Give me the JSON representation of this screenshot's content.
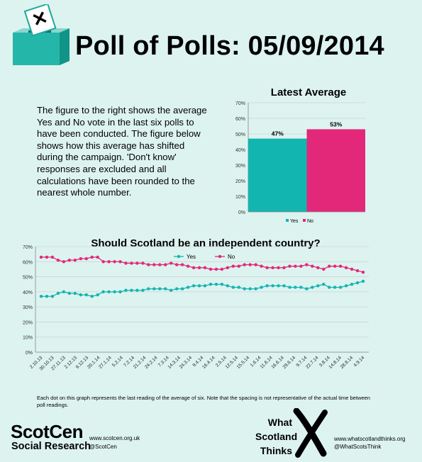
{
  "header": {
    "title": "Poll of Polls: 05/09/2014"
  },
  "intro": {
    "text": "The figure to the right shows the average Yes and No vote in the last six polls to have been conducted. The figure below shows how this average has shifted during the campaign. 'Don't know' responses are excluded  and all calculations have been rounded to the nearest whole number."
  },
  "colors": {
    "yes": "#13b5b0",
    "no": "#e3287a",
    "background": "#ddf3f0"
  },
  "chart_data": [
    {
      "type": "bar",
      "title": "Latest Average",
      "categories": [
        "Yes",
        "No"
      ],
      "values": [
        47,
        53
      ],
      "data_labels": [
        "47%",
        "53%"
      ],
      "ylim": [
        0,
        70
      ],
      "yticks": [
        "0%",
        "10%",
        "20%",
        "30%",
        "40%",
        "50%",
        "60%",
        "70%"
      ],
      "legend": [
        "Yes",
        "No"
      ],
      "legend_position": "bottom"
    },
    {
      "type": "line",
      "title": "Should Scotland be an independent country?",
      "ylim": [
        0,
        70
      ],
      "yticks": [
        "0%",
        "10%",
        "20%",
        "30%",
        "40%",
        "50%",
        "60%",
        "70%"
      ],
      "x_tick_labels": [
        "2.10.13",
        "30.10.13",
        "27.11.13",
        "2.12.13",
        "9.12.13",
        "20.1.14",
        "27.1.14",
        "5.2.14",
        "7.2.14",
        "21.2.14",
        "24.2.14",
        "7.3.14",
        "14.3.14",
        "24.3.14",
        "9.4.14",
        "16.4.14",
        "2.5.14",
        "12.5.14",
        "15.5.14",
        "1.6.14",
        "11.6.14",
        "16.6.14",
        "29.6.14",
        "9.7.14",
        "22.7.14",
        "3.8.14",
        "14.8.14",
        "28.8.14",
        "4.9.14"
      ],
      "legend_position": "top",
      "series": [
        {
          "name": "Yes",
          "values": [
            37,
            37,
            37,
            39,
            40,
            39,
            39,
            38,
            38,
            37,
            38,
            40,
            40,
            40,
            40,
            41,
            41,
            41,
            41,
            42,
            42,
            42,
            42,
            41,
            42,
            42,
            43,
            44,
            44,
            44,
            45,
            45,
            45,
            44,
            43,
            43,
            42,
            42,
            42,
            43,
            44,
            44,
            44,
            44,
            43,
            43,
            43,
            42,
            43,
            44,
            45,
            43,
            43,
            43,
            44,
            45,
            46,
            47
          ]
        },
        {
          "name": "No",
          "values": [
            63,
            63,
            63,
            61,
            60,
            61,
            61,
            62,
            62,
            63,
            63,
            60,
            60,
            60,
            60,
            59,
            59,
            59,
            59,
            58,
            58,
            58,
            58,
            59,
            58,
            58,
            57,
            56,
            56,
            56,
            55,
            55,
            55,
            56,
            57,
            57,
            58,
            58,
            58,
            57,
            56,
            56,
            56,
            56,
            57,
            57,
            57,
            58,
            57,
            56,
            55,
            57,
            57,
            57,
            56,
            55,
            54,
            53
          ]
        }
      ]
    }
  ],
  "footnote": "Each dot on this graph represents the last reading of the average of six. Note that the spacing is not representative of the actual time between poll readings.",
  "footer": {
    "scotcen_name": "ScotCen",
    "scotcen_sub": "Social Research",
    "scotcen_url": "www.scotcen.org.uk",
    "scotcen_handle": "@ScotCen",
    "wst_line1": "What",
    "wst_line2": "Scotland",
    "wst_line3": "Thinks",
    "wst_url": "www.whatscotlandthinks.org",
    "wst_handle": "@WhatScotsThink"
  }
}
